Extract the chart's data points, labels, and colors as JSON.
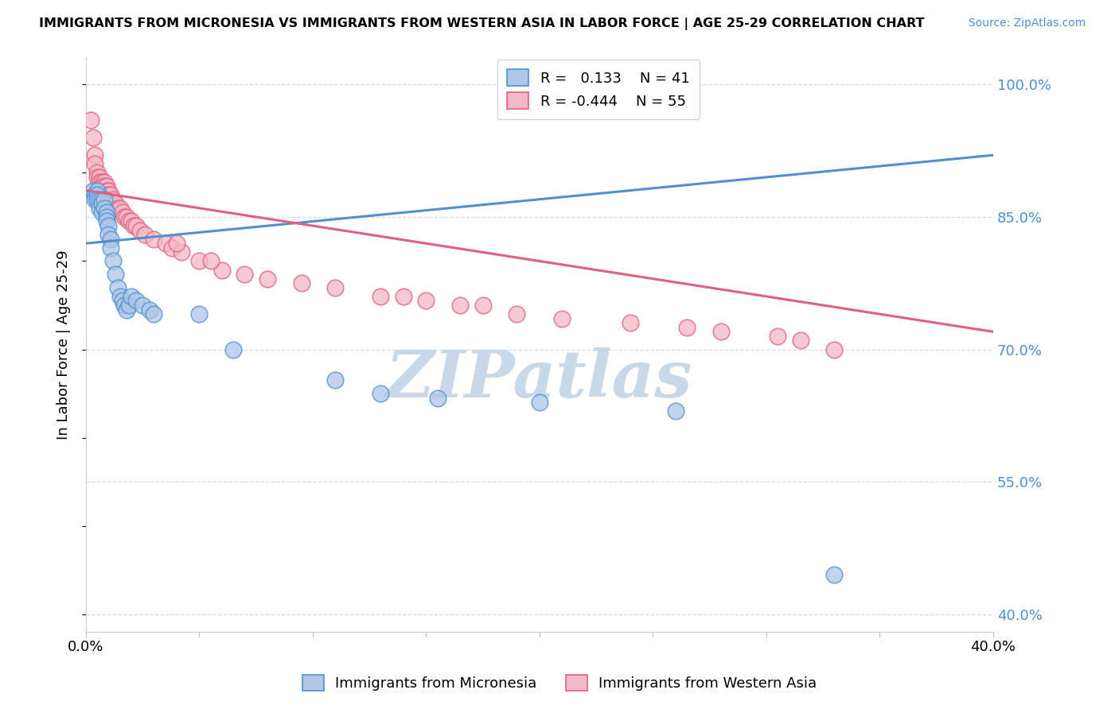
{
  "title": "IMMIGRANTS FROM MICRONESIA VS IMMIGRANTS FROM WESTERN ASIA IN LABOR FORCE | AGE 25-29 CORRELATION CHART",
  "source": "Source: ZipAtlas.com",
  "ylabel": "In Labor Force | Age 25-29",
  "legend_label1": "Immigrants from Micronesia",
  "legend_label2": "Immigrants from Western Asia",
  "R1": 0.133,
  "N1": 41,
  "R2": -0.444,
  "N2": 55,
  "xmin": 0.0,
  "xmax": 0.4,
  "ymin": 0.38,
  "ymax": 1.03,
  "yticks": [
    0.4,
    0.55,
    0.7,
    0.85,
    1.0
  ],
  "ytick_labels": [
    "40.0%",
    "55.0%",
    "70.0%",
    "85.0%",
    "100.0%"
  ],
  "xticks": [
    0.0,
    0.05,
    0.1,
    0.15,
    0.2,
    0.25,
    0.3,
    0.35,
    0.4
  ],
  "xtick_labels": [
    "0.0%",
    "",
    "",
    "",
    "",
    "",
    "",
    "",
    "40.0%"
  ],
  "color_blue": "#aec6e8",
  "color_pink": "#f5b8c8",
  "line_color_blue": "#5090d0",
  "line_color_pink": "#e06080",
  "blue_x": [
    0.003,
    0.004,
    0.004,
    0.005,
    0.005,
    0.005,
    0.006,
    0.006,
    0.007,
    0.007,
    0.007,
    0.008,
    0.008,
    0.009,
    0.009,
    0.009,
    0.01,
    0.01,
    0.011,
    0.011,
    0.012,
    0.013,
    0.014,
    0.015,
    0.016,
    0.017,
    0.018,
    0.019,
    0.02,
    0.022,
    0.025,
    0.028,
    0.03,
    0.05,
    0.065,
    0.11,
    0.13,
    0.155,
    0.2,
    0.26,
    0.33
  ],
  "blue_y": [
    0.88,
    0.875,
    0.87,
    0.88,
    0.875,
    0.87,
    0.87,
    0.86,
    0.87,
    0.865,
    0.855,
    0.87,
    0.86,
    0.855,
    0.85,
    0.845,
    0.84,
    0.83,
    0.825,
    0.815,
    0.8,
    0.785,
    0.77,
    0.76,
    0.755,
    0.75,
    0.745,
    0.75,
    0.76,
    0.755,
    0.75,
    0.745,
    0.74,
    0.74,
    0.7,
    0.665,
    0.65,
    0.645,
    0.64,
    0.63,
    0.445
  ],
  "pink_x": [
    0.002,
    0.003,
    0.004,
    0.004,
    0.005,
    0.005,
    0.006,
    0.006,
    0.007,
    0.007,
    0.008,
    0.008,
    0.009,
    0.009,
    0.01,
    0.01,
    0.011,
    0.012,
    0.013,
    0.014,
    0.015,
    0.016,
    0.017,
    0.018,
    0.019,
    0.02,
    0.021,
    0.022,
    0.024,
    0.026,
    0.03,
    0.035,
    0.038,
    0.042,
    0.05,
    0.06,
    0.07,
    0.08,
    0.095,
    0.11,
    0.13,
    0.15,
    0.165,
    0.19,
    0.21,
    0.24,
    0.265,
    0.28,
    0.305,
    0.315,
    0.04,
    0.055,
    0.14,
    0.175,
    0.33
  ],
  "pink_y": [
    0.96,
    0.94,
    0.92,
    0.91,
    0.9,
    0.895,
    0.895,
    0.89,
    0.89,
    0.885,
    0.89,
    0.885,
    0.885,
    0.88,
    0.88,
    0.875,
    0.875,
    0.87,
    0.865,
    0.86,
    0.86,
    0.855,
    0.85,
    0.85,
    0.845,
    0.845,
    0.84,
    0.84,
    0.835,
    0.83,
    0.825,
    0.82,
    0.815,
    0.81,
    0.8,
    0.79,
    0.785,
    0.78,
    0.775,
    0.77,
    0.76,
    0.755,
    0.75,
    0.74,
    0.735,
    0.73,
    0.725,
    0.72,
    0.715,
    0.71,
    0.82,
    0.8,
    0.76,
    0.75,
    0.7
  ],
  "blue_trendline_x": [
    0.0,
    0.4
  ],
  "blue_trendline_y": [
    0.82,
    0.92
  ],
  "pink_trendline_x": [
    0.0,
    0.4
  ],
  "pink_trendline_y": [
    0.88,
    0.72
  ],
  "watermark": "ZIPatlas",
  "watermark_color": "#c8d8e8",
  "grid_color": "#d8d8e8",
  "grid_style": "--"
}
